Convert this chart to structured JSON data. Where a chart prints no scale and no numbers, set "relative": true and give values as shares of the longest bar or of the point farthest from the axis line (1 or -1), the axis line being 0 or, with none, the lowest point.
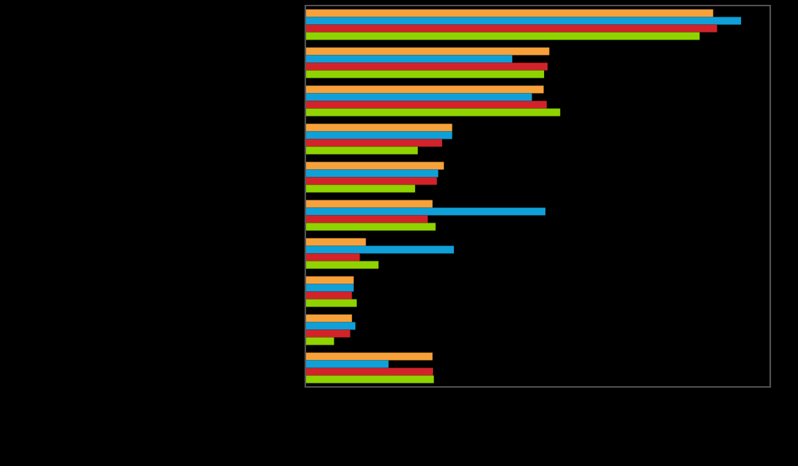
{
  "chart_data": {
    "type": "bar",
    "orientation": "horizontal",
    "relative": true,
    "categories": [
      null,
      null,
      null,
      null,
      null,
      null,
      null,
      null,
      null,
      null
    ],
    "series": [
      {
        "color": "#f7a13a",
        "values": [
          0.936,
          0.56,
          0.547,
          0.337,
          0.318,
          0.292,
          0.139,
          0.111,
          0.107,
          0.292
        ]
      },
      {
        "color": "#0fa0d8",
        "values": [
          1,
          0.475,
          0.52,
          0.337,
          0.305,
          0.551,
          0.341,
          0.111,
          0.115,
          0.191
        ]
      },
      {
        "color": "#d2232a",
        "values": [
          0.945,
          0.556,
          0.554,
          0.314,
          0.302,
          0.281,
          0.125,
          0.107,
          0.103,
          0.293
        ]
      },
      {
        "color": "#8fd300",
        "values": [
          0.905,
          0.548,
          0.585,
          0.258,
          0.252,
          0.299,
          0.168,
          0.118,
          0.066,
          0.295
        ]
      }
    ]
  }
}
